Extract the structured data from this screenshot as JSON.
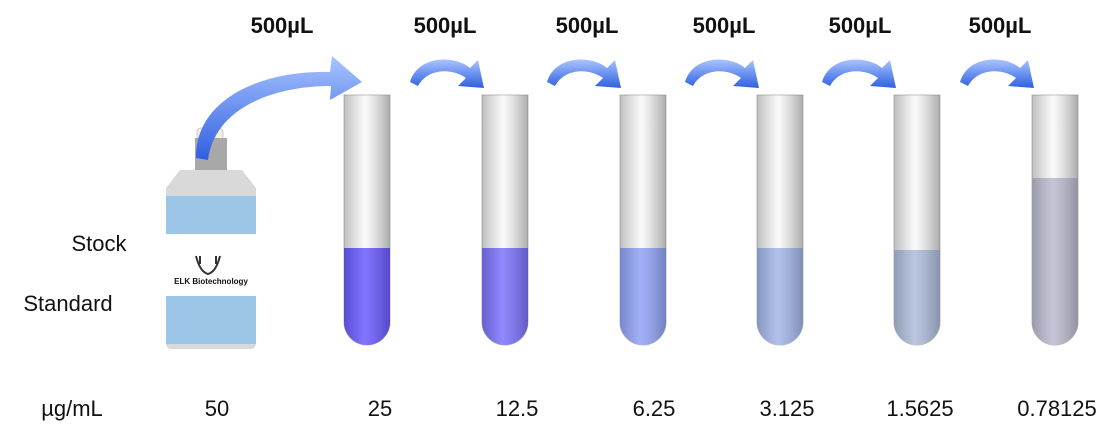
{
  "transfers": [
    "500µL",
    "500µL",
    "500µL",
    "500µL",
    "500µL",
    "500µL"
  ],
  "stock_label": [
    "Stock",
    "Standard"
  ],
  "bottle_label": "ELK Biotechnology",
  "unit_label": "µg/mL",
  "concentrations": [
    "50",
    "25",
    "12.5",
    "6.25",
    "3.125",
    "1.5625",
    "0.78125"
  ]
}
